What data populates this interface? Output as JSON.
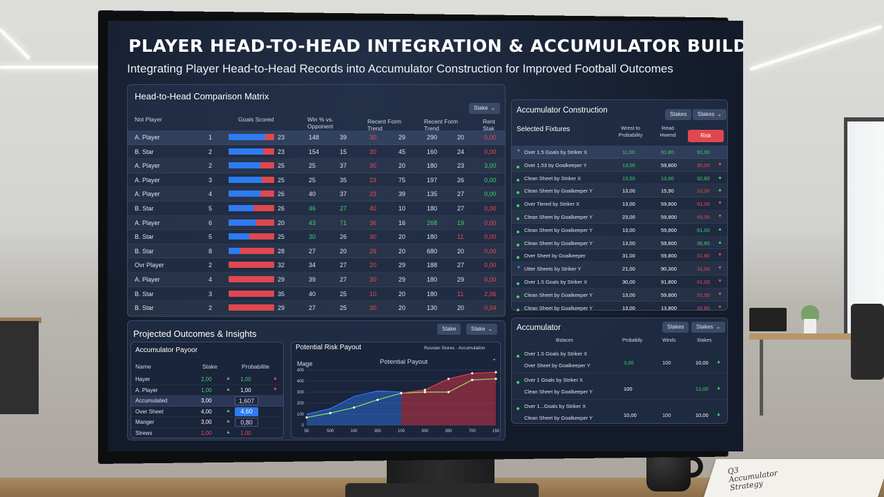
{
  "header": {
    "title": "PLAYER HEAD-TO-HEAD INTEGRATION & ACCUMULATOR BUILDER",
    "subtitle": "Integrating Player Head-to-Head Records into Accumulator Construction for Improved Football Outcomes"
  },
  "matrix": {
    "title": "Head-to-Head Comparison Matrix",
    "dropdown": "Stake",
    "headers": {
      "player": "Not Player",
      "goals": "Goals Scored",
      "win": "Win % vs. Opponent",
      "form": "Recent Form Trend",
      "form2": "Recent Form Trend",
      "last": "Rent Stak"
    },
    "rows": [
      {
        "name": "A. Player",
        "n": "1",
        "blue": 0.8,
        "g": "23",
        "a": "148",
        "b": "39",
        "c": "30",
        "cc": "r",
        "d": "29",
        "e": "290",
        "f": "20",
        "h": "0,00",
        "hc": "r"
      },
      {
        "name": "B. Star",
        "n": "2",
        "blue": 0.75,
        "g": "23",
        "a": "154",
        "b": "15",
        "c": "30",
        "cc": "r",
        "d": "45",
        "e": "160",
        "f": "24",
        "h": "0,00",
        "hc": "r"
      },
      {
        "name": "A. Player",
        "n": "2",
        "blue": 0.7,
        "g": "25",
        "a": "25",
        "b": "37",
        "c": "30",
        "cc": "r",
        "d": "20",
        "e": "180",
        "f": "23",
        "h": "3,00",
        "hc": "g"
      },
      {
        "name": "A. Player",
        "n": "3",
        "blue": 0.72,
        "g": "25",
        "a": "25",
        "b": "35",
        "c": "23",
        "cc": "r",
        "d": "75",
        "e": "197",
        "f": "26",
        "h": "0,00",
        "hc": "g"
      },
      {
        "name": "A. Player",
        "n": "4",
        "blue": 0.7,
        "g": "26",
        "a": "40",
        "b": "37",
        "c": "23",
        "cc": "r",
        "d": "39",
        "e": "135",
        "f": "27",
        "h": "0,00",
        "hc": "g"
      },
      {
        "name": "B. Star",
        "n": "5",
        "blue": 0.55,
        "g": "26",
        "a": "46",
        "ac": "g",
        "b": "27",
        "bc": "g",
        "c": "40",
        "cc": "r",
        "d": "10",
        "e": "180",
        "f": "27",
        "h": "0,00",
        "hc": "r"
      },
      {
        "name": "A. Player",
        "n": "6",
        "blue": 0.6,
        "g": "20",
        "a": "43",
        "ac": "g",
        "b": "71",
        "bc": "g",
        "c": "36",
        "cc": "r",
        "d": "16",
        "e": "268",
        "ec": "g",
        "f": "19",
        "fc": "g",
        "h": "0,00",
        "hc": "r"
      },
      {
        "name": "B. Star",
        "n": "5",
        "blue": 0.45,
        "g": "25",
        "a": "30",
        "ac": "g",
        "b": "26",
        "c": "30",
        "cc": "r",
        "d": "20",
        "e": "180",
        "f": "11",
        "fc": "r",
        "h": "0,00",
        "hc": "r"
      },
      {
        "name": "B. Star",
        "n": "8",
        "blue": 0.25,
        "g": "28",
        "a": "27",
        "b": "20",
        "c": "29",
        "cc": "r",
        "d": "20",
        "e": "680",
        "f": "20",
        "h": "0,00",
        "hc": "r"
      },
      {
        "name": "Ovr Player",
        "n": "2",
        "blue": 0,
        "g": "32",
        "a": "34",
        "b": "27",
        "c": "20",
        "cc": "r",
        "d": "29",
        "e": "188",
        "f": "27",
        "h": "0,00",
        "hc": "r"
      },
      {
        "name": "A. Player",
        "n": "4",
        "blue": 0,
        "g": "29",
        "a": "39",
        "b": "27",
        "c": "30",
        "cc": "r",
        "d": "29",
        "e": "180",
        "f": "29",
        "h": "0,00",
        "hc": "r"
      },
      {
        "name": "B. Star",
        "n": "3",
        "blue": 0,
        "g": "35",
        "a": "40",
        "b": "25",
        "c": "10",
        "cc": "r",
        "d": "20",
        "e": "180",
        "f": "11",
        "fc": "r",
        "h": "2,06",
        "hc": "r"
      },
      {
        "name": "B. Star",
        "n": "2",
        "blue": 0,
        "g": "29",
        "a": "27",
        "b": "25",
        "c": "30",
        "cc": "r",
        "d": "20",
        "e": "130",
        "f": "20",
        "h": "0,04",
        "hc": "r"
      }
    ]
  },
  "acc_construction": {
    "title": "Accumulator Construction",
    "chip1": "Stakes",
    "chip2": "Stakes",
    "headers": {
      "fixtures": "Selected Fixtures",
      "prob": "Wrest to Probability",
      "trend": "Read Hwend",
      "risk": "Risk"
    },
    "rows": [
      {
        "label": "Over 1.5 Goals by Striker X",
        "m": "down",
        "a": "11,00",
        "b": "91,80",
        "c": "91,00",
        "ac": "g",
        "bc": "g",
        "cc": "g",
        "t": ""
      },
      {
        "label": "Over 1.53 by Goalkeeper Y",
        "m": "dot",
        "a": "13,00",
        "b": "59,800",
        "c": "30,00",
        "ac": "g",
        "bc": "w",
        "cc": "r",
        "t": "▼"
      },
      {
        "label": "Clean Sheet by Striker X",
        "m": "dot",
        "a": "13,50",
        "b": "13,80",
        "c": "32,80",
        "ac": "g",
        "bc": "g",
        "cc": "g",
        "t": "▲"
      },
      {
        "label": "Clean Sheet by Goalkeeper Y",
        "m": "dot",
        "a": "13,00",
        "b": "15,90",
        "c": "13,00",
        "ac": "w",
        "bc": "w",
        "cc": "r",
        "t": "▲"
      },
      {
        "label": "Over Tiered by Striker X",
        "m": "dot",
        "a": "13,00",
        "b": "59,800",
        "c": "91,00",
        "ac": "w",
        "bc": "w",
        "cc": "r",
        "t": "▼"
      },
      {
        "label": "Clean Sheet by Goalkeeper Y",
        "m": "dot",
        "a": "23,00",
        "b": "59,800",
        "c": "93,00",
        "ac": "w",
        "bc": "w",
        "cc": "r",
        "t": "▼"
      },
      {
        "label": "Clean Sheet by Goalkeeper Y",
        "m": "dot",
        "a": "13,00",
        "b": "59,800",
        "c": "91,00",
        "ac": "w",
        "bc": "w",
        "cc": "g",
        "t": "▲"
      },
      {
        "label": "Clean Sheet by Goalkeeper Y",
        "m": "dot",
        "a": "13,00",
        "b": "59,800",
        "c": "36,80",
        "ac": "w",
        "bc": "w",
        "cc": "g",
        "t": "▲"
      },
      {
        "label": "Over Sheet by Goalkeeper",
        "m": "dot",
        "a": "31,00",
        "b": "59,800",
        "c": "31,80",
        "ac": "w",
        "bc": "w",
        "cc": "r",
        "t": "▼"
      },
      {
        "label": "Utter Sheets by Striker Y",
        "m": "down",
        "a": "21,00",
        "b": "90,300",
        "c": "31,00",
        "ac": "w",
        "bc": "w",
        "cc": "r",
        "t": "▼"
      },
      {
        "label": "Over 1.5 Goals by Striker X",
        "m": "dot",
        "a": "30,00",
        "b": "91,800",
        "c": "91,00",
        "ac": "w",
        "bc": "w",
        "cc": "r",
        "t": "▼"
      },
      {
        "label": "Clean Sheet by Goalkeeper Y",
        "m": "dot",
        "a": "13,00",
        "b": "59,800",
        "c": "31,00",
        "ac": "w",
        "bc": "w",
        "cc": "r",
        "t": "▼"
      },
      {
        "label": "Clean Sheet by Goalkeeper Y",
        "m": "dot",
        "a": "13,00",
        "b": "13,800",
        "c": "32,80",
        "ac": "w",
        "bc": "w",
        "cc": "r",
        "t": "▼"
      }
    ]
  },
  "outcomes": {
    "title": "Projected Outcomes & Insights",
    "chip1": "Stake",
    "chip2": "Stake",
    "payout": {
      "title": "Accumulator Payoor",
      "headers": {
        "name": "Name",
        "stake": "Stake",
        "prob": "Probabilite"
      },
      "rows": [
        {
          "name": "Hayer",
          "stake": "2,00",
          "sc": "g",
          "up": "▲",
          "prob": "1,00",
          "pc": "g",
          "t": "▲",
          "tc": "r"
        },
        {
          "name": "A. Player",
          "stake": "1,00",
          "sc": "g",
          "up": "▲",
          "prob": "1,00",
          "pc": "w",
          "t": "▼",
          "tc": "r"
        },
        {
          "name": "Accumulated",
          "stake": "3,00",
          "sc": "w",
          "up": "",
          "prob": "1,607",
          "pc": "box",
          "t": "",
          "tc": "r"
        },
        {
          "name": "Over Sheet",
          "stake": "4,00",
          "sc": "w",
          "up": "▲",
          "prob": "4,60",
          "pc": "blue",
          "t": "",
          "tc": "r"
        },
        {
          "name": "Manger",
          "stake": "3,00",
          "sc": "w",
          "up": "▲",
          "prob": "0,80",
          "pc": "box",
          "t": "",
          "tc": "r"
        },
        {
          "name": "Strews",
          "stake": "1,00",
          "sc": "r",
          "up": "▲",
          "prob": "1,00",
          "pc": "r",
          "t": "",
          "tc": "r"
        }
      ]
    }
  },
  "chart_data": {
    "type": "line",
    "title": "Potential Payout",
    "panel_title": "Potential Risk Payout",
    "legend_text": "Russian Stores · Accumulation",
    "ylabel": "Mage",
    "x": [
      0,
      100,
      200,
      300,
      400,
      500,
      600,
      700,
      800
    ],
    "x_ticks": [
      "50",
      "500",
      "100",
      "350",
      "100",
      "300",
      "350",
      "700",
      "150"
    ],
    "y_ticks": [
      "0",
      "100",
      "200",
      "300",
      "400",
      "400"
    ],
    "ylim": [
      0,
      500
    ],
    "series": [
      {
        "name": "",
        "color": "#2f7bf2",
        "values": [
          100,
          150,
          260,
          310,
          300,
          null,
          null,
          null,
          null
        ]
      },
      {
        "name": "",
        "color": "#9adf5a",
        "values": [
          70,
          110,
          160,
          230,
          290,
          300,
          300,
          410,
          420
        ]
      },
      {
        "name": "",
        "color": "#e0474f",
        "values": [
          null,
          null,
          null,
          null,
          290,
          320,
          420,
          470,
          480
        ]
      }
    ]
  },
  "accumulator": {
    "title": "Accumulator",
    "chip1": "Stakes",
    "chip2": "Stakes",
    "headers": {
      "a": "Bstaces",
      "b": "Probabily",
      "c": "Winds",
      "d": "Stakes"
    },
    "rows": [
      {
        "l1": "Over 1.5 Goals by Striker X",
        "l2": "Over Sheet by Goalkeeper Y",
        "b": "3,00",
        "bc": "g",
        "c": "100",
        "d": "10,00",
        "t": "▲"
      },
      {
        "l1": "Over 1 Goals by Striker X",
        "l2": "Clean Sheet by Goalkeeper Y",
        "b": "100",
        "bc": "w",
        "c": "",
        "d": "12,00",
        "dc": "g",
        "t": "▲"
      },
      {
        "l1": "Over 1...Goals by Striker X",
        "l2": "Clean Sheet by Goalkeeper Y",
        "b": "10,00",
        "bc": "w",
        "c": "100",
        "d": "10,00",
        "t": "▲"
      }
    ]
  },
  "notebook": {
    "text": "Q3 Accumulator Strategy"
  }
}
